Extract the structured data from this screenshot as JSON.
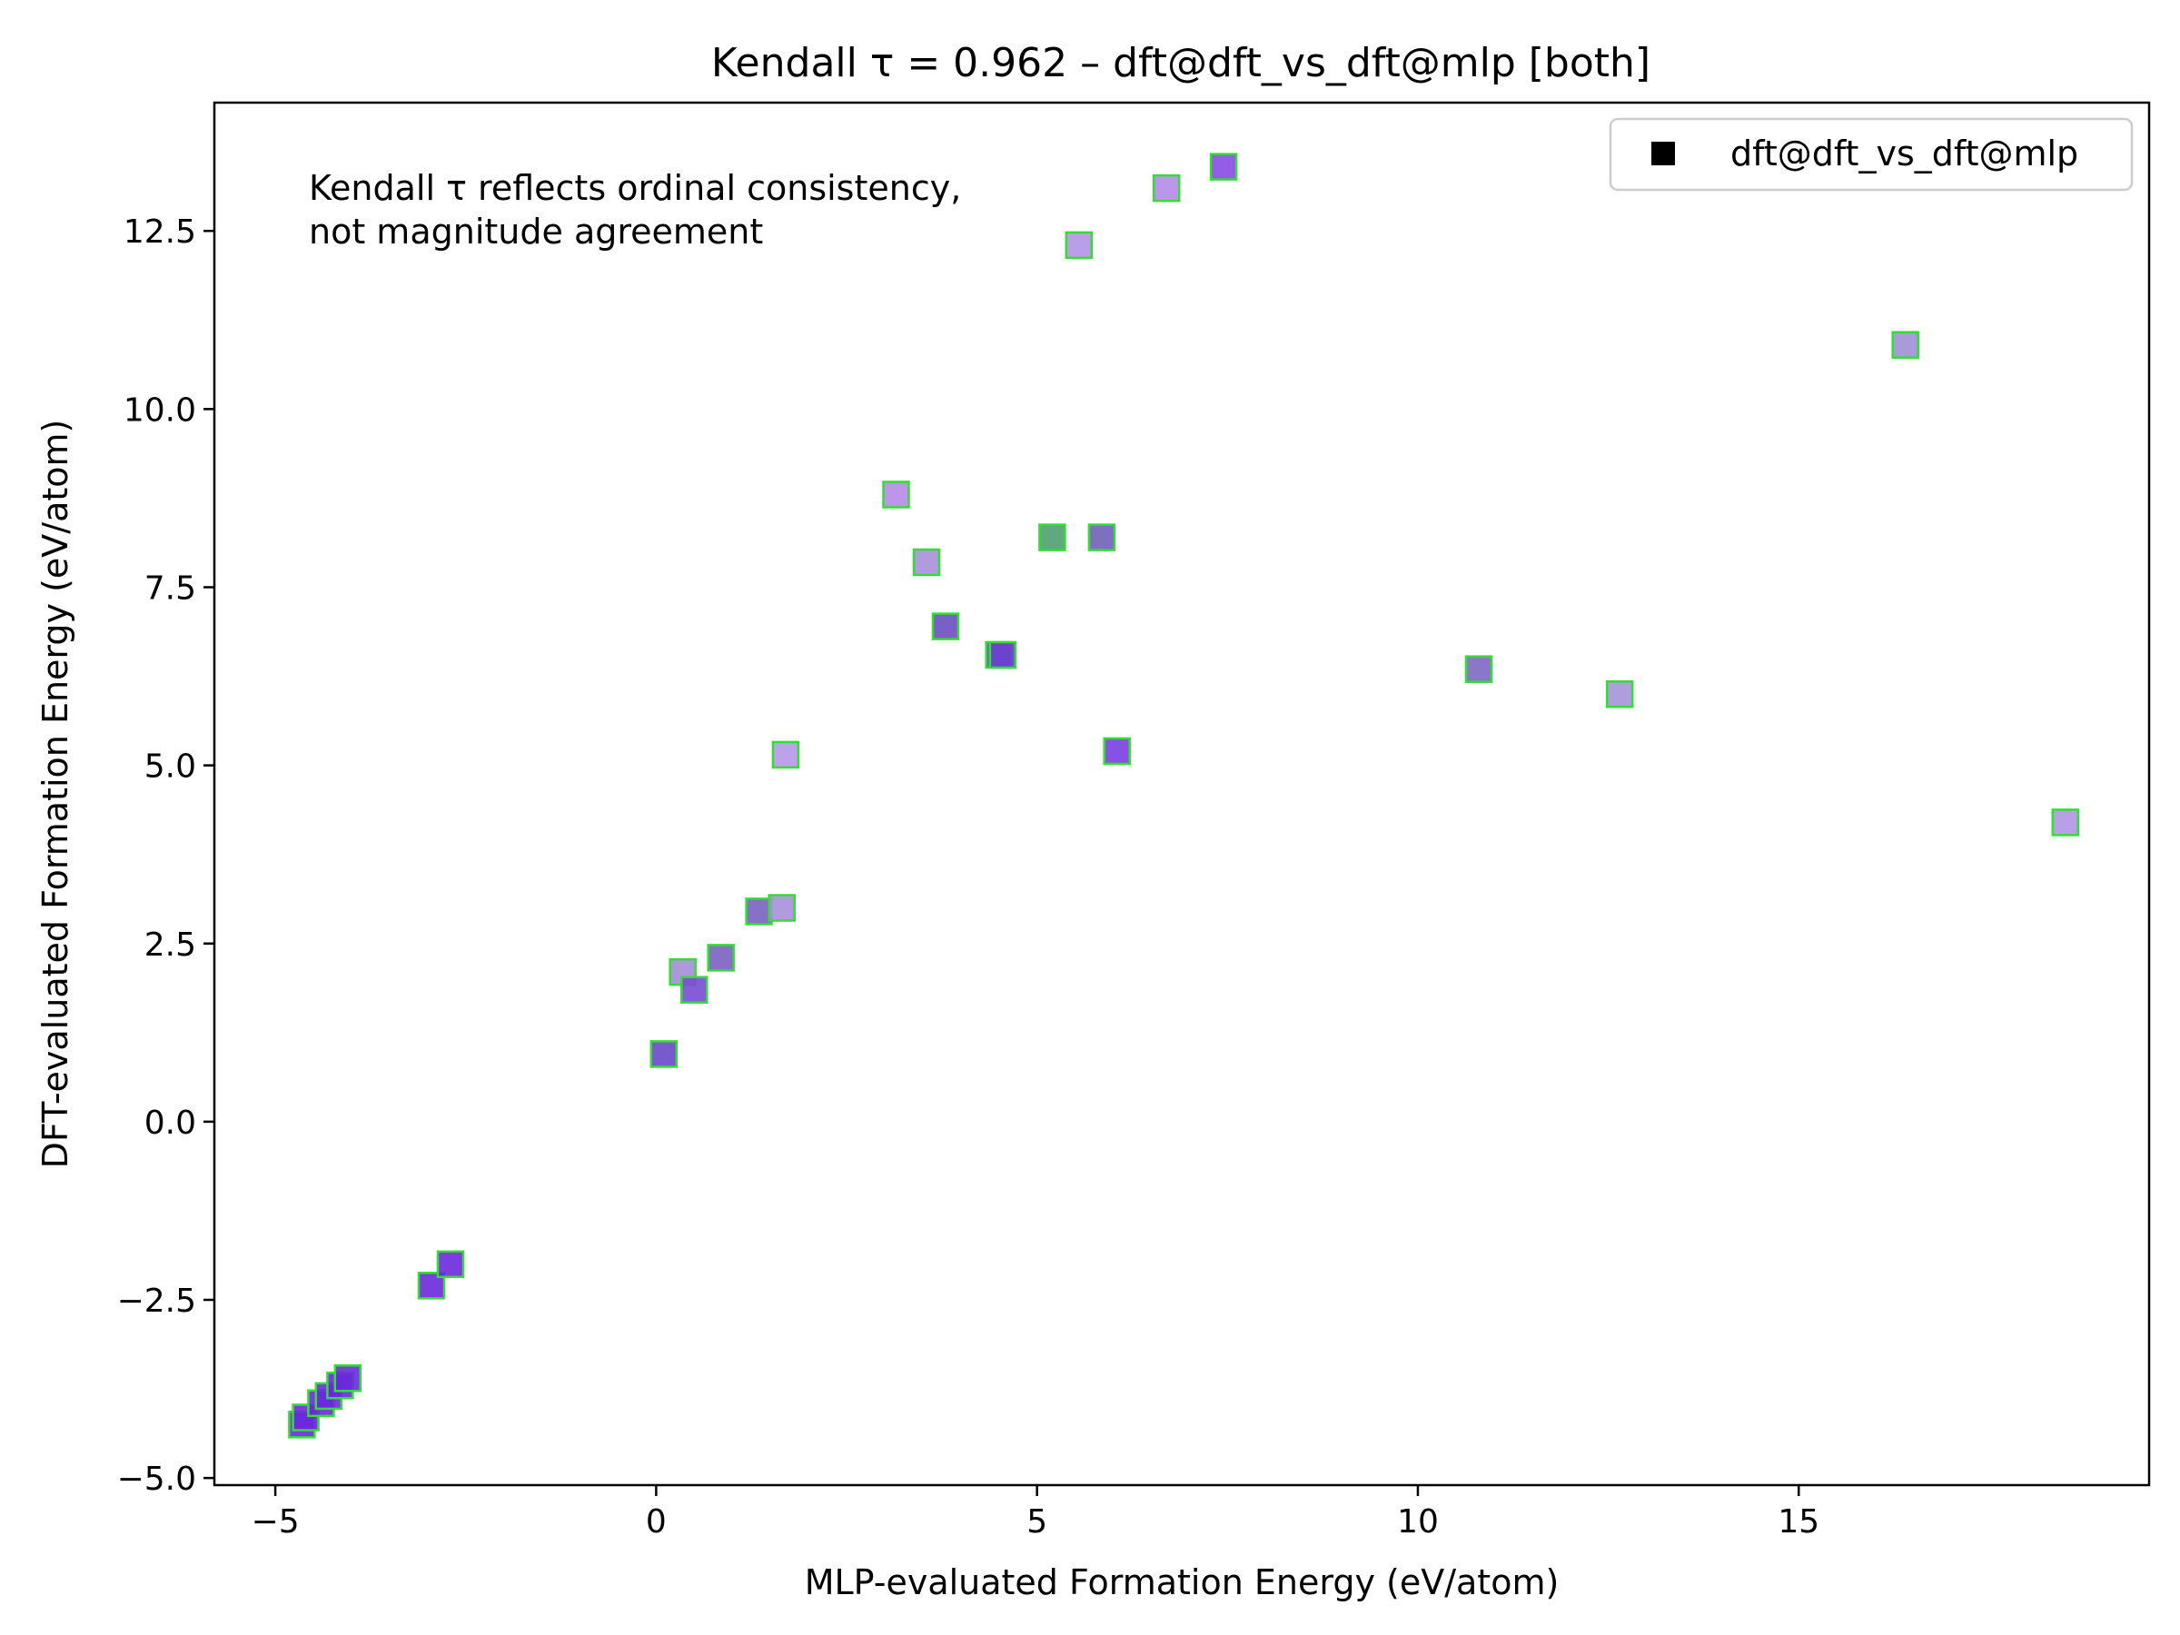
{
  "chart_data": {
    "type": "scatter",
    "title": "Kendall τ = 0.962 – dft@dft_vs_dft@mlp [both]",
    "xlabel": "MLP-evaluated Formation Energy (eV/atom)",
    "ylabel": "DFT-evaluated Formation Energy (eV/atom)",
    "xlim": [
      -5.8,
      19.6
    ],
    "ylim": [
      -5.1,
      14.3
    ],
    "xticks": [
      -5,
      0,
      5,
      10,
      15
    ],
    "xtick_labels": [
      "−5",
      "0",
      "5",
      "10",
      "15"
    ],
    "yticks": [
      -5.0,
      -2.5,
      0.0,
      2.5,
      5.0,
      7.5,
      10.0,
      12.5
    ],
    "ytick_labels": [
      "−5.0",
      "−2.5",
      "0.0",
      "2.5",
      "5.0",
      "7.5",
      "10.0",
      "12.5"
    ],
    "grid": false,
    "legend": {
      "placement": "top-right",
      "entries": [
        "dft@dft_vs_dft@mlp"
      ],
      "marker_color": "#000000"
    },
    "annotation": [
      "Kendall τ reflects ordinal consistency,",
      "not magnitude agreement"
    ],
    "marker": "square",
    "edge_color": "#33dd33",
    "series": [
      {
        "points": [
          {
            "x": -4.65,
            "y": -4.25,
            "color": "#6a28dd"
          },
          {
            "x": -4.6,
            "y": -4.15,
            "color": "#6a28dd"
          },
          {
            "x": -4.4,
            "y": -3.95,
            "color": "#6a28dd"
          },
          {
            "x": -4.3,
            "y": -3.85,
            "color": "#6a28dd"
          },
          {
            "x": -4.15,
            "y": -3.7,
            "color": "#6a28dd"
          },
          {
            "x": -4.05,
            "y": -3.6,
            "color": "#6a28dd"
          },
          {
            "x": -2.95,
            "y": -2.3,
            "color": "#6a28dd"
          },
          {
            "x": -2.7,
            "y": -2.0,
            "color": "#6a28dd"
          },
          {
            "x": 0.1,
            "y": 0.95,
            "color": "#6a48c8"
          },
          {
            "x": 0.35,
            "y": 2.1,
            "color": "#a38dd6"
          },
          {
            "x": 0.5,
            "y": 1.85,
            "color": "#7a4ad4"
          },
          {
            "x": 0.85,
            "y": 2.3,
            "color": "#7a62c0"
          },
          {
            "x": 1.35,
            "y": 2.95,
            "color": "#7a62c0"
          },
          {
            "x": 1.65,
            "y": 3.0,
            "color": "#a890dc"
          },
          {
            "x": 1.7,
            "y": 5.15,
            "color": "#b598e6"
          },
          {
            "x": 3.15,
            "y": 8.8,
            "color": "#b68be8"
          },
          {
            "x": 3.55,
            "y": 7.85,
            "color": "#a990dc"
          },
          {
            "x": 3.8,
            "y": 6.95,
            "color": "#6c4fc0"
          },
          {
            "x": 4.5,
            "y": 6.55,
            "color": "#6a48c8"
          },
          {
            "x": 4.55,
            "y": 6.55,
            "color": "#6a3fce"
          },
          {
            "x": 5.2,
            "y": 8.2,
            "color": "#4fa070"
          },
          {
            "x": 5.55,
            "y": 12.3,
            "color": "#b394e4"
          },
          {
            "x": 5.85,
            "y": 8.2,
            "color": "#7060b8"
          },
          {
            "x": 6.05,
            "y": 5.2,
            "color": "#7a3fe0"
          },
          {
            "x": 6.7,
            "y": 13.1,
            "color": "#b58be8"
          },
          {
            "x": 7.45,
            "y": 13.4,
            "color": "#8a4ae6"
          },
          {
            "x": 10.8,
            "y": 6.35,
            "color": "#7e68c2"
          },
          {
            "x": 12.65,
            "y": 6.0,
            "color": "#a594d8"
          },
          {
            "x": 16.4,
            "y": 10.9,
            "color": "#a090d6"
          },
          {
            "x": 18.5,
            "y": 4.2,
            "color": "#b195e4"
          }
        ]
      }
    ]
  }
}
